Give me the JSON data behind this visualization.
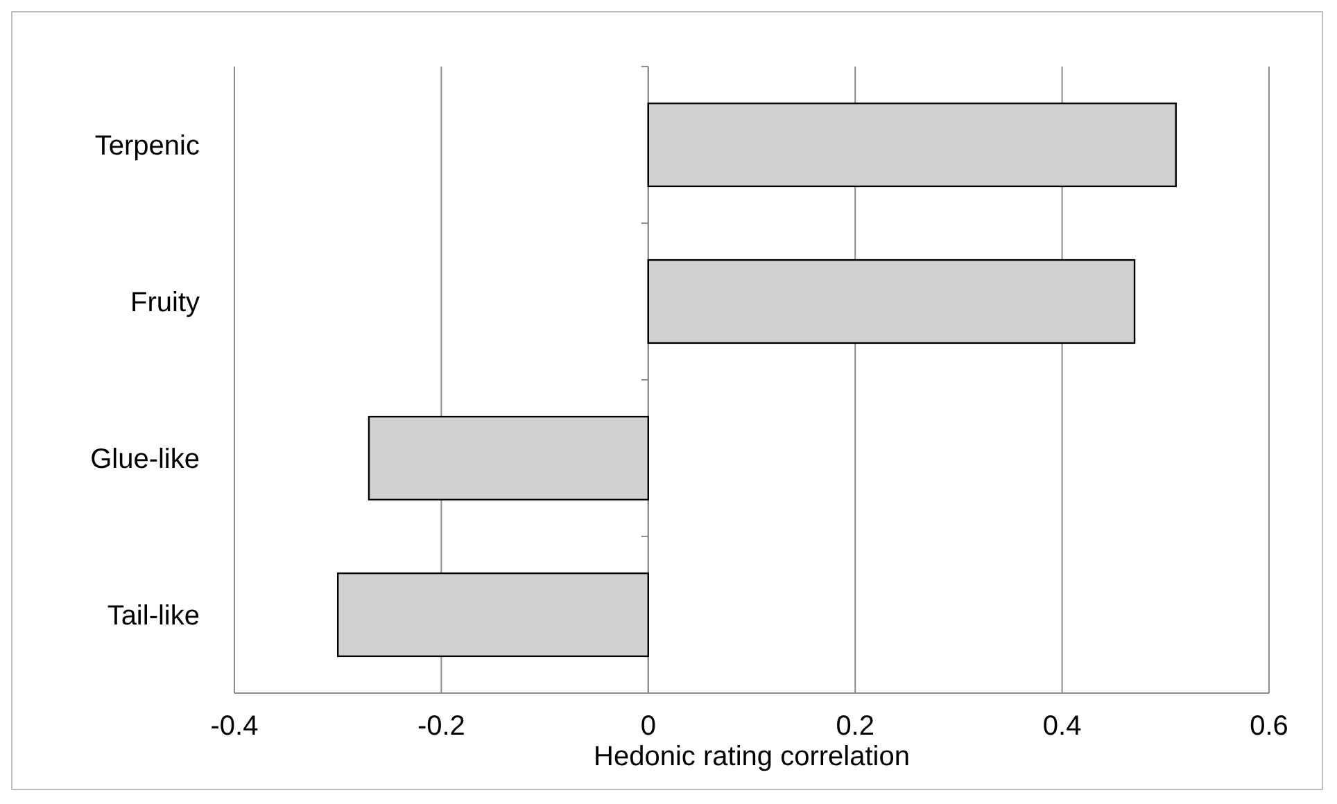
{
  "chart_data": {
    "type": "bar",
    "orientation": "horizontal",
    "xlabel": "Hedonic rating correlation",
    "categories": [
      "Terpenic",
      "Fruity",
      "Glue-like",
      "Tail-like"
    ],
    "values": [
      0.51,
      0.47,
      -0.27,
      -0.3
    ],
    "color": "#d0d0d0",
    "xlim": [
      -0.4,
      0.6
    ],
    "xticks": [
      -0.4,
      -0.2,
      0,
      0.2,
      0.4,
      0.6
    ],
    "grid": "x"
  }
}
